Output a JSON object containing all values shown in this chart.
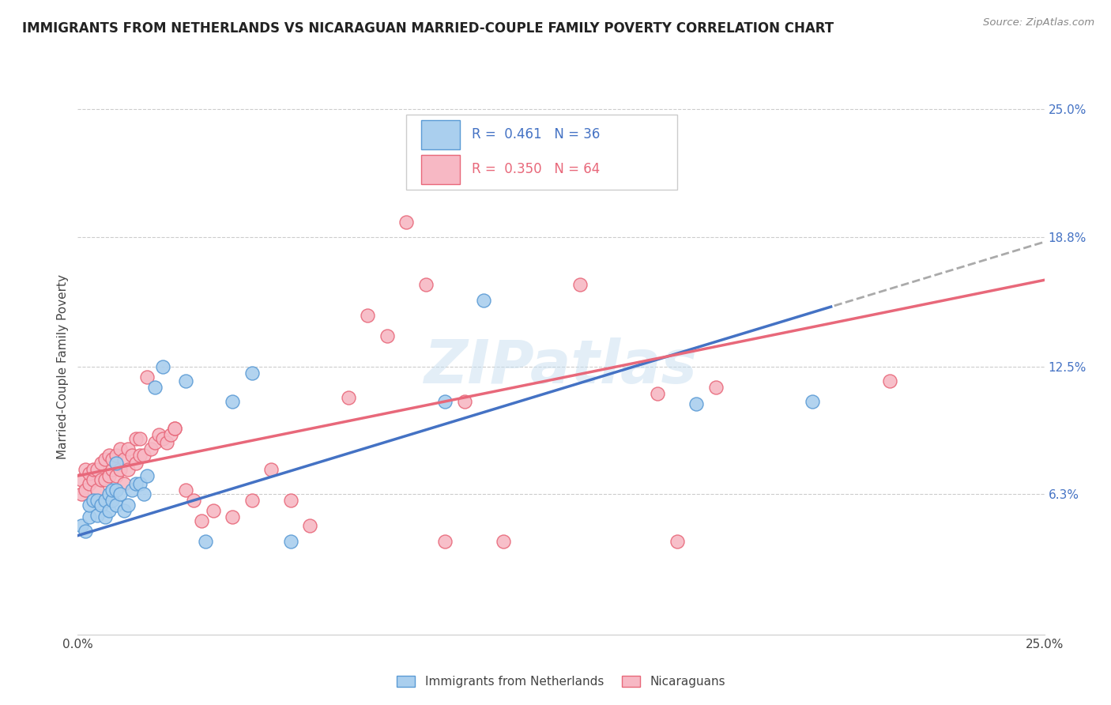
{
  "title": "IMMIGRANTS FROM NETHERLANDS VS NICARAGUAN MARRIED-COUPLE FAMILY POVERTY CORRELATION CHART",
  "source": "Source: ZipAtlas.com",
  "ylabel": "Married-Couple Family Poverty",
  "xlim": [
    0.0,
    0.25
  ],
  "ylim": [
    -0.01,
    0.25
  ],
  "ytick_values": [
    0.0,
    0.063,
    0.125,
    0.188,
    0.25
  ],
  "ytick_labels": [
    "",
    "6.3%",
    "12.5%",
    "18.8%",
    "25.0%"
  ],
  "xtick_values": [
    0.0,
    0.05,
    0.1,
    0.15,
    0.2,
    0.25
  ],
  "xtick_labels": [
    "0.0%",
    "",
    "",
    "",
    "",
    "25.0%"
  ],
  "blue_R": 0.461,
  "blue_N": 36,
  "pink_R": 0.35,
  "pink_N": 64,
  "blue_color": "#aacfee",
  "pink_color": "#f7b8c4",
  "blue_edge_color": "#5b9bd5",
  "pink_edge_color": "#e8687a",
  "blue_line_color": "#4472c4",
  "pink_line_color": "#e8687a",
  "grid_color": "#cccccc",
  "watermark": "ZIPatlas",
  "blue_scatter_x": [
    0.001,
    0.002,
    0.003,
    0.003,
    0.004,
    0.005,
    0.005,
    0.006,
    0.007,
    0.007,
    0.008,
    0.008,
    0.009,
    0.009,
    0.01,
    0.01,
    0.011,
    0.012,
    0.013,
    0.014,
    0.015,
    0.016,
    0.017,
    0.018,
    0.02,
    0.022,
    0.028,
    0.033,
    0.04,
    0.045,
    0.055,
    0.095,
    0.105,
    0.16,
    0.19,
    0.01
  ],
  "blue_scatter_y": [
    0.048,
    0.045,
    0.052,
    0.058,
    0.06,
    0.053,
    0.06,
    0.058,
    0.052,
    0.06,
    0.055,
    0.063,
    0.06,
    0.065,
    0.058,
    0.065,
    0.063,
    0.055,
    0.058,
    0.065,
    0.068,
    0.068,
    0.063,
    0.072,
    0.115,
    0.125,
    0.118,
    0.04,
    0.108,
    0.122,
    0.04,
    0.108,
    0.157,
    0.107,
    0.108,
    0.078
  ],
  "pink_scatter_x": [
    0.001,
    0.001,
    0.002,
    0.002,
    0.003,
    0.003,
    0.004,
    0.004,
    0.005,
    0.005,
    0.006,
    0.006,
    0.007,
    0.007,
    0.008,
    0.008,
    0.009,
    0.009,
    0.01,
    0.01,
    0.011,
    0.011,
    0.012,
    0.012,
    0.013,
    0.013,
    0.014,
    0.015,
    0.015,
    0.016,
    0.016,
    0.017,
    0.018,
    0.019,
    0.02,
    0.021,
    0.022,
    0.023,
    0.024,
    0.025,
    0.028,
    0.03,
    0.032,
    0.035,
    0.04,
    0.045,
    0.05,
    0.055,
    0.06,
    0.07,
    0.075,
    0.08,
    0.085,
    0.09,
    0.095,
    0.1,
    0.11,
    0.12,
    0.13,
    0.15,
    0.155,
    0.165,
    0.21,
    0.025
  ],
  "pink_scatter_y": [
    0.063,
    0.07,
    0.065,
    0.075,
    0.068,
    0.073,
    0.07,
    0.075,
    0.065,
    0.075,
    0.07,
    0.078,
    0.07,
    0.08,
    0.072,
    0.082,
    0.075,
    0.08,
    0.072,
    0.082,
    0.075,
    0.085,
    0.068,
    0.08,
    0.075,
    0.085,
    0.082,
    0.078,
    0.09,
    0.082,
    0.09,
    0.082,
    0.12,
    0.085,
    0.088,
    0.092,
    0.09,
    0.088,
    0.092,
    0.095,
    0.065,
    0.06,
    0.05,
    0.055,
    0.052,
    0.06,
    0.075,
    0.06,
    0.048,
    0.11,
    0.15,
    0.14,
    0.195,
    0.165,
    0.04,
    0.108,
    0.04,
    0.215,
    0.165,
    0.112,
    0.04,
    0.115,
    0.118,
    0.095
  ],
  "blue_line_intercept": 0.043,
  "blue_line_slope": 0.57,
  "pink_line_intercept": 0.072,
  "pink_line_slope": 0.38
}
